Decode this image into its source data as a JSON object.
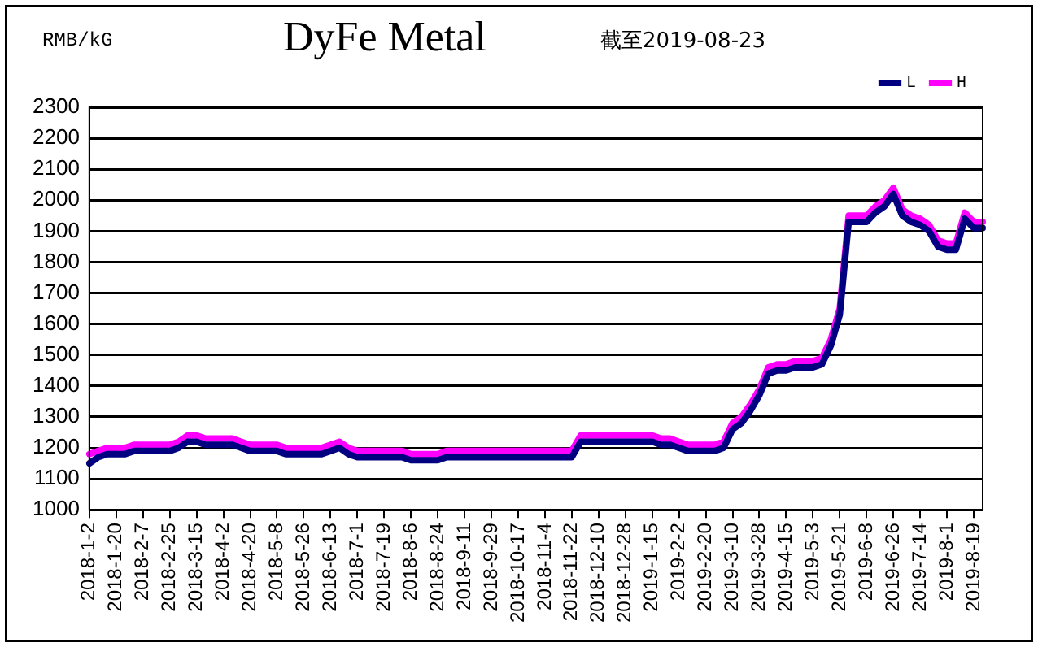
{
  "chart_data": {
    "type": "line",
    "title": "DyFe Metal",
    "subtitle": "截至2019-08-23",
    "ylabel": "RMB/kG",
    "categories": [
      "2018-1-2",
      null,
      null,
      "2018-1-20",
      null,
      null,
      "2018-2-7",
      null,
      null,
      "2018-2-25",
      null,
      null,
      "2018-3-15",
      null,
      null,
      "2018-4-2",
      null,
      null,
      "2018-4-20",
      null,
      null,
      "2018-5-8",
      null,
      null,
      "2018-5-26",
      null,
      null,
      "2018-6-13",
      null,
      null,
      "2018-7-1",
      null,
      null,
      "2018-7-19",
      null,
      null,
      "2018-8-6",
      null,
      null,
      "2018-8-24",
      null,
      null,
      "2018-9-11",
      null,
      null,
      "2018-9-29",
      null,
      null,
      "2018-10-17",
      null,
      null,
      "2018-11-4",
      null,
      null,
      "2018-11-22",
      null,
      null,
      "2018-12-10",
      null,
      null,
      "2018-12-28",
      null,
      null,
      "2019-1-15",
      null,
      null,
      "2019-2-2",
      null,
      null,
      "2019-2-20",
      null,
      null,
      "2019-3-10",
      null,
      null,
      "2019-3-28",
      null,
      null,
      "2019-4-15",
      null,
      null,
      "2019-5-3",
      null,
      null,
      "2019-5-21",
      null,
      null,
      "2019-6-8",
      null,
      null,
      "2019-6-26",
      null,
      null,
      "2019-7-14",
      null,
      null,
      "2019-8-1",
      null,
      null,
      "2019-8-19",
      null
    ],
    "series": [
      {
        "name": "L",
        "color": "#000080",
        "values": [
          1150,
          1170,
          1180,
          1180,
          1180,
          1190,
          1190,
          1190,
          1190,
          1190,
          1200,
          1220,
          1220,
          1210,
          1210,
          1210,
          1210,
          1200,
          1190,
          1190,
          1190,
          1190,
          1180,
          1180,
          1180,
          1180,
          1180,
          1190,
          1200,
          1180,
          1170,
          1170,
          1170,
          1170,
          1170,
          1170,
          1160,
          1160,
          1160,
          1160,
          1170,
          1170,
          1170,
          1170,
          1170,
          1170,
          1170,
          1170,
          1170,
          1170,
          1170,
          1170,
          1170,
          1170,
          1170,
          1220,
          1220,
          1220,
          1220,
          1220,
          1220,
          1220,
          1220,
          1220,
          1210,
          1210,
          1200,
          1190,
          1190,
          1190,
          1190,
          1200,
          1260,
          1280,
          1320,
          1370,
          1440,
          1450,
          1450,
          1460,
          1460,
          1460,
          1470,
          1530,
          1630,
          1930,
          1930,
          1930,
          1960,
          1980,
          2020,
          1950,
          1930,
          1920,
          1900,
          1850,
          1840,
          1840,
          1940,
          1910,
          1910
        ]
      },
      {
        "name": "H",
        "color": "#ff00ff",
        "values": [
          1180,
          1190,
          1200,
          1200,
          1200,
          1210,
          1210,
          1210,
          1210,
          1210,
          1220,
          1240,
          1240,
          1230,
          1230,
          1230,
          1230,
          1220,
          1210,
          1210,
          1210,
          1210,
          1200,
          1200,
          1200,
          1200,
          1200,
          1210,
          1220,
          1200,
          1190,
          1190,
          1190,
          1190,
          1190,
          1190,
          1180,
          1180,
          1180,
          1180,
          1190,
          1190,
          1190,
          1190,
          1190,
          1190,
          1190,
          1190,
          1190,
          1190,
          1190,
          1190,
          1190,
          1190,
          1190,
          1240,
          1240,
          1240,
          1240,
          1240,
          1240,
          1240,
          1240,
          1240,
          1230,
          1230,
          1220,
          1210,
          1210,
          1210,
          1210,
          1220,
          1280,
          1300,
          1340,
          1390,
          1460,
          1470,
          1470,
          1480,
          1480,
          1480,
          1490,
          1550,
          1650,
          1950,
          1950,
          1950,
          1980,
          2000,
          2040,
          1970,
          1950,
          1940,
          1920,
          1870,
          1860,
          1860,
          1960,
          1930,
          1930
        ]
      }
    ],
    "ylim": [
      1000,
      2300
    ],
    "yticks": [
      1000,
      1100,
      1200,
      1300,
      1400,
      1500,
      1600,
      1700,
      1800,
      1900,
      2000,
      2100,
      2200,
      2300
    ],
    "grid": "y",
    "legend": "top right",
    "marker": "none",
    "line_style": "solid"
  }
}
